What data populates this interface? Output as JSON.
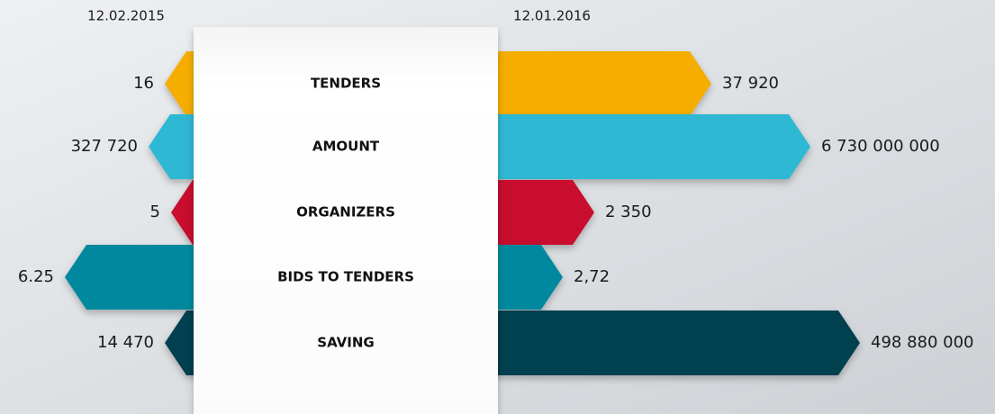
{
  "dates": {
    "start": "12.02.2015",
    "end": "12.01.2016"
  },
  "rows": [
    {
      "label": "TENDERS",
      "start": "16",
      "end": "37 920"
    },
    {
      "label": "AMOUNT",
      "start": "327 720",
      "end": "6 730 000 000"
    },
    {
      "label": "ORGANIZERS",
      "start": "5",
      "end": "2 350"
    },
    {
      "label": "BIDS TO TENDERS",
      "start": "6.25",
      "end": "2,72"
    },
    {
      "label": "SAVING",
      "start": "14 470",
      "end": "498 880 000"
    }
  ]
}
